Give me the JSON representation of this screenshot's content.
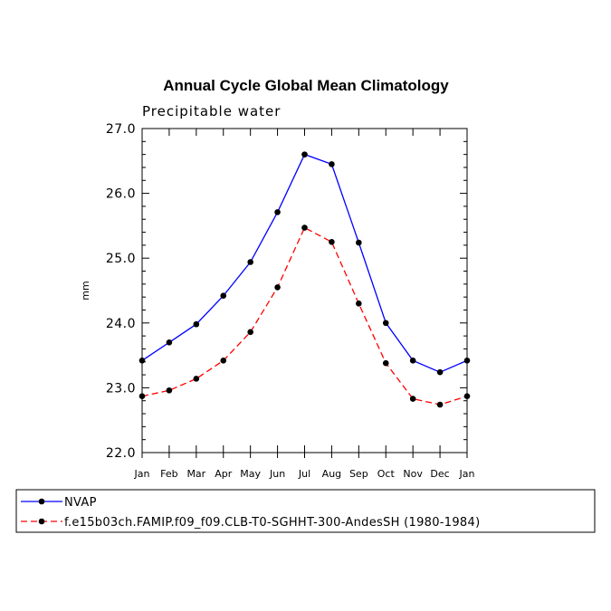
{
  "chart_data": {
    "type": "line",
    "title": "Annual Cycle Global Mean Climatology",
    "subtitle": "Precipitable water",
    "xlabel": "",
    "ylabel": "mm",
    "categories": [
      "Jan",
      "Feb",
      "Mar",
      "Apr",
      "May",
      "Jun",
      "Jul",
      "Aug",
      "Sep",
      "Oct",
      "Nov",
      "Dec",
      "Jan"
    ],
    "ylim": [
      22.0,
      27.0
    ],
    "yticks": [
      "22.0",
      "23.0",
      "24.0",
      "25.0",
      "26.0",
      "27.0"
    ],
    "grid": false,
    "legend_position": "bottom",
    "series": [
      {
        "name": "NVAP",
        "color": "#0000ff",
        "dash": "solid",
        "marker": "circle",
        "values": [
          23.42,
          23.7,
          23.98,
          24.42,
          24.94,
          25.71,
          26.6,
          26.45,
          25.24,
          24.0,
          23.42,
          23.24,
          23.42
        ]
      },
      {
        "name": "f.e15b03ch.FAMIP.f09_f09.CLB-T0-SGHHT-300-AndesSH (1980-1984)",
        "color": "#ff0000",
        "dash": "dashed",
        "marker": "circle",
        "values": [
          22.87,
          22.96,
          23.14,
          23.42,
          23.86,
          24.55,
          25.47,
          25.25,
          24.3,
          23.38,
          22.83,
          22.74,
          22.87
        ]
      }
    ]
  }
}
